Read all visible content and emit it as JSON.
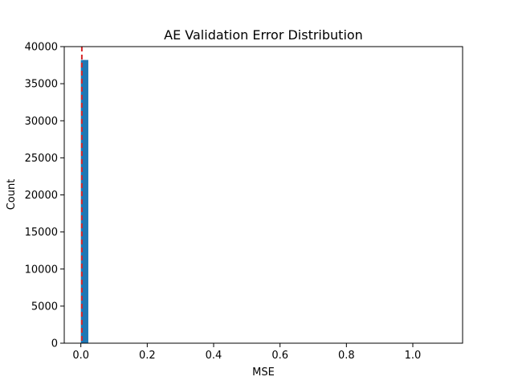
{
  "chart_data": {
    "type": "bar",
    "title": "AE Validation Error Distribution",
    "xlabel": "MSE",
    "ylabel": "Count",
    "xlim": [
      -0.05,
      1.15
    ],
    "ylim": [
      0,
      40000
    ],
    "x_ticks": [
      0.0,
      0.2,
      0.4,
      0.6,
      0.8,
      1.0
    ],
    "x_tick_labels": [
      "0.0",
      "0.2",
      "0.4",
      "0.6",
      "0.8",
      "1.0"
    ],
    "y_ticks": [
      0,
      5000,
      10000,
      15000,
      20000,
      25000,
      30000,
      35000,
      40000
    ],
    "y_tick_labels": [
      "0",
      "5000",
      "10000",
      "15000",
      "20000",
      "25000",
      "30000",
      "35000",
      "40000"
    ],
    "bins": [
      {
        "x0": 0.0,
        "x1": 0.0225,
        "count": 38200
      }
    ],
    "threshold_line": {
      "x": 0.003,
      "style": "dashed"
    },
    "grid": false,
    "colors": {
      "bar": "#1f77b4",
      "threshold": "#d62728",
      "axes": "#000000"
    }
  }
}
